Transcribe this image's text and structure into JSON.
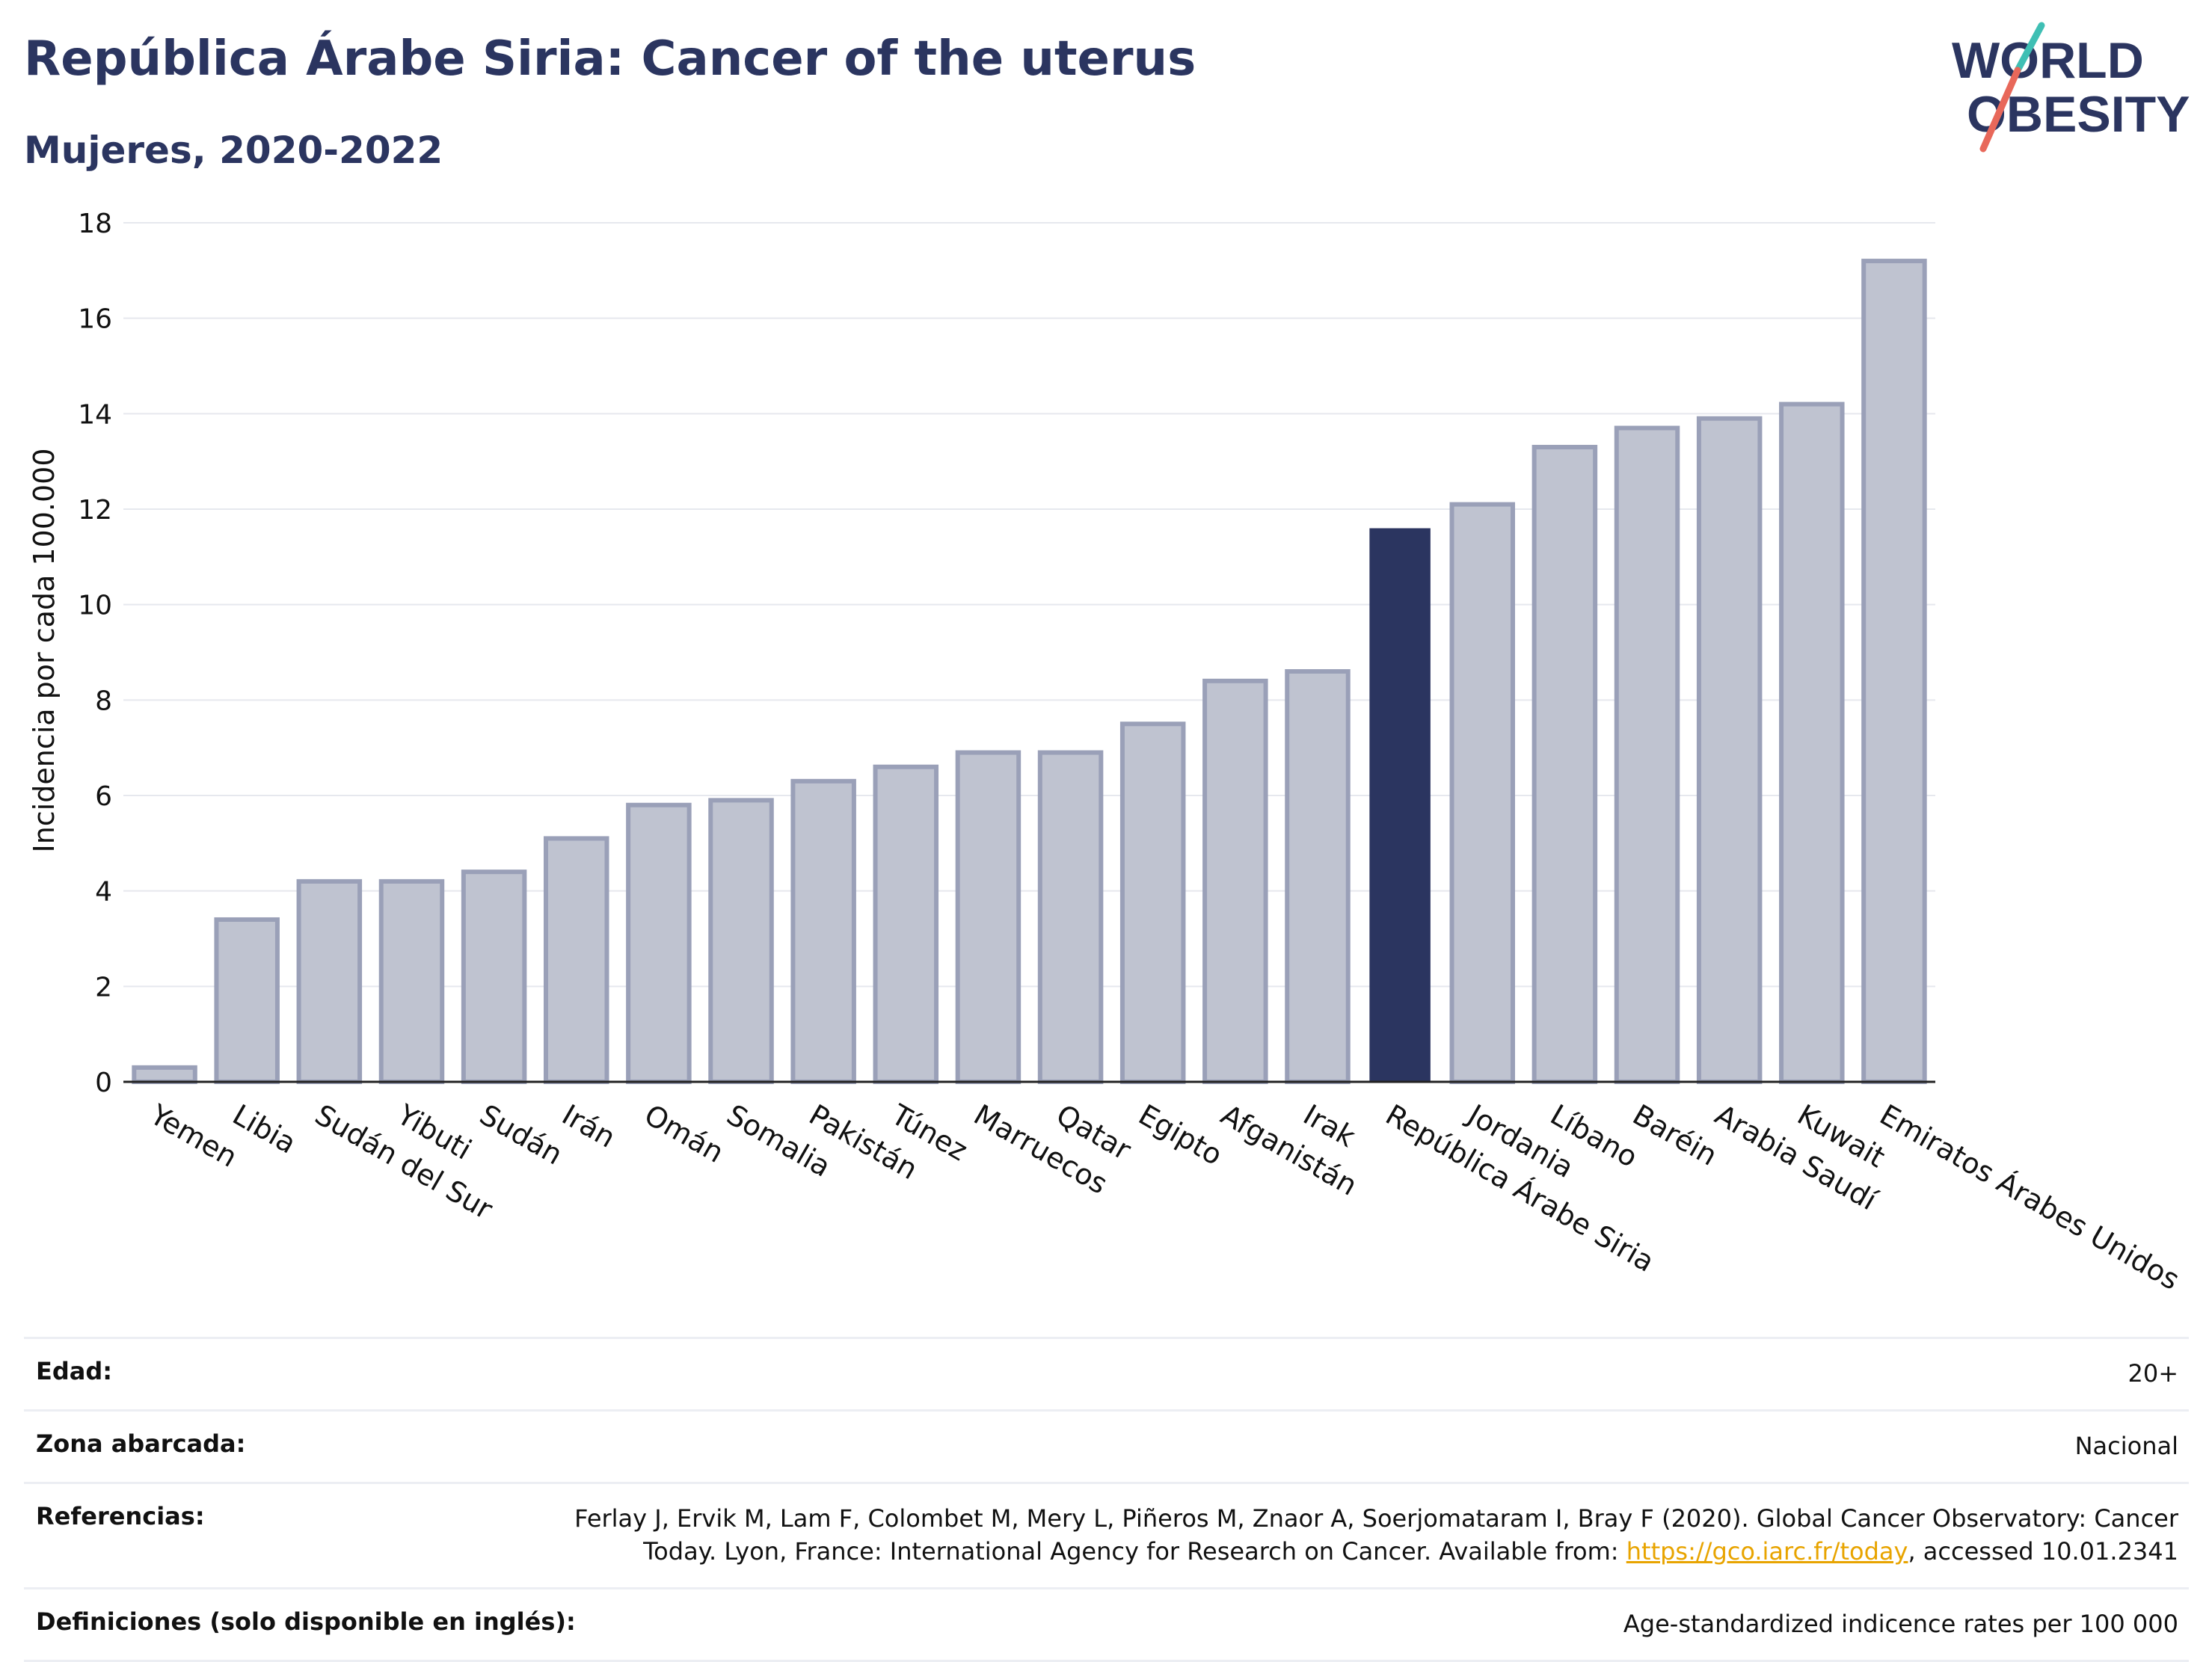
{
  "header": {
    "title": "República Árabe Siria: Cancer of the uterus",
    "subtitle": "Mujeres, 2020-2022"
  },
  "logo": {
    "line1": "WORLD",
    "line2": "OBESITY"
  },
  "colors": {
    "highlight": "#2b3560",
    "bar_fill": "#bfc3d0",
    "bar_stroke": "#9aa0b8",
    "link": "#e8a400",
    "logo_teal": "#3fbfb4",
    "logo_red": "#e8685a"
  },
  "chart_data": {
    "type": "bar",
    "categories": [
      "Yemen",
      "Libia",
      "Sudán del Sur",
      "Yibuti",
      "Sudán",
      "Irán",
      "Omán",
      "Somalia",
      "Pakistán",
      "Túnez",
      "Marruecos",
      "Qatar",
      "Egipto",
      "Afganistán",
      "Irak",
      "República Árabe Siria",
      "Jordania",
      "Líbano",
      "Baréin",
      "Arabia Saudí",
      "Kuwait",
      "Emiratos Árabes Unidos"
    ],
    "values": [
      0.3,
      3.4,
      4.2,
      4.2,
      4.4,
      5.1,
      5.8,
      5.9,
      6.3,
      6.6,
      6.9,
      6.9,
      7.5,
      8.4,
      8.6,
      11.6,
      12.1,
      13.3,
      13.7,
      13.9,
      14.2,
      17.2
    ],
    "highlight": "República Árabe Siria",
    "ylabel": "Incidencia por cada 100.000",
    "ylim": [
      0,
      18
    ],
    "yticks": [
      0,
      2,
      4,
      6,
      8,
      10,
      12,
      14,
      16,
      18
    ],
    "grid": true
  },
  "meta": {
    "age_label": "Edad:",
    "age_value": "20+",
    "area_label": "Zona abarcada:",
    "area_value": "Nacional",
    "ref_label": "Referencias:",
    "ref_text_1": "Ferlay J, Ervik M, Lam F, Colombet M, Mery L, Piñeros M, Znaor A, Soerjomataram I, Bray F (2020). Global Cancer Observatory: Cancer",
    "ref_text_2": "Today. Lyon, France: International Agency for Research on Cancer. Available from: ",
    "ref_link": "https://gco.iarc.fr/today",
    "ref_text_3": ", accessed 10.01.2341",
    "def_label": "Definiciones (solo disponible en inglés):",
    "def_value": "Age-standardized indicence rates per 100 000"
  }
}
